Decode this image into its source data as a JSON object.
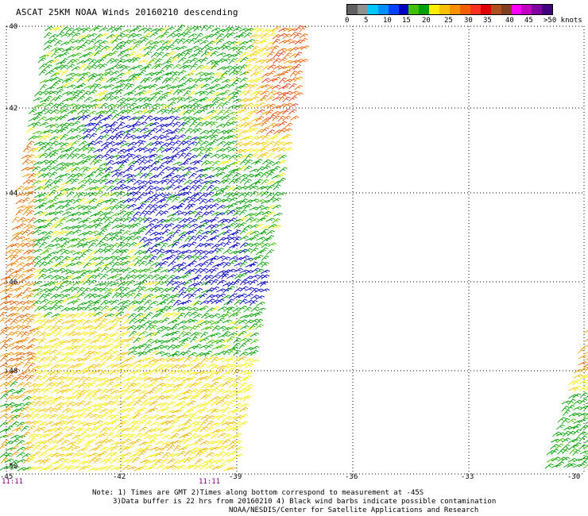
{
  "title": "ASCAT 25KM NOAA Winds 20160210 descending",
  "scale": {
    "colors": [
      "#606060",
      "#909090",
      "#00c8ff",
      "#0090ff",
      "#0040ff",
      "#0000c0",
      "#40c000",
      "#00a000",
      "#f8f000",
      "#f8c000",
      "#f89000",
      "#f06000",
      "#f83020",
      "#e00000",
      "#b05020",
      "#804020",
      "#ff00ff",
      "#c000c0",
      "#8000a0",
      "#400080"
    ],
    "labels": [
      "0",
      "5",
      "10",
      "15",
      "20",
      "25",
      "30",
      "35",
      "40",
      "45",
      ">50 knots"
    ]
  },
  "axes": {
    "lat_labels": [
      "-40",
      "-42",
      "-44",
      "-46",
      "-48",
      "-50"
    ],
    "lon_labels": [
      "-45",
      "-42",
      "-39",
      "-36",
      "-33",
      "-30"
    ]
  },
  "time_labels": [
    "11:11",
    "11:11"
  ],
  "notes": {
    "line1": "Note: 1) Times are GMT 2)Times along bottom correspond to measurement at -45S",
    "line2": "3)Data buffer is 22 hrs from 20160210 4) Black wind barbs indicate possible contamination",
    "line3": "NOAA/NESDIS/Center for Satellite Applications and Research"
  }
}
